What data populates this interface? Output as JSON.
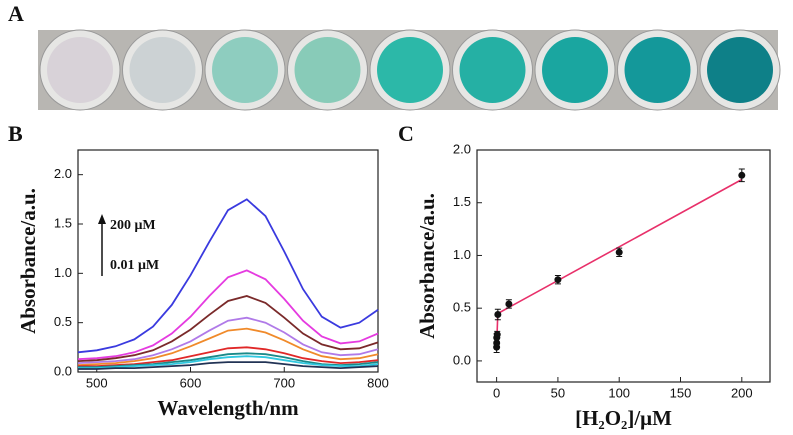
{
  "photo": {
    "label": "A"
  },
  "chart_data": [
    {
      "type": "line",
      "panel": "B",
      "ylabel": "Absorbance/a.u.",
      "xlabel": "Wavelength/nm",
      "annotations": [
        "200 μM",
        "0.01 μM"
      ],
      "xlim": [
        480,
        800
      ],
      "xticks": [
        500,
        600,
        700,
        800
      ],
      "ylim": [
        0,
        2.25
      ],
      "yticks": [
        {
          "value": 0,
          "label": "0.0"
        },
        {
          "value": 0.5,
          "label": "0.5"
        },
        {
          "value": 1,
          "label": "1.0"
        },
        {
          "value": 1.5,
          "label": "1.5"
        },
        {
          "value": 2,
          "label": "2.0"
        }
      ],
      "x": [
        480,
        500,
        520,
        540,
        560,
        580,
        600,
        620,
        640,
        660,
        680,
        700,
        720,
        740,
        760,
        780,
        800
      ],
      "series": [
        {
          "color": "#3a3adf",
          "values": [
            0.2,
            0.22,
            0.26,
            0.33,
            0.46,
            0.68,
            0.98,
            1.32,
            1.64,
            1.75,
            1.58,
            1.22,
            0.84,
            0.56,
            0.45,
            0.5,
            0.63
          ]
        },
        {
          "color": "#e53be0",
          "values": [
            0.13,
            0.14,
            0.16,
            0.2,
            0.27,
            0.39,
            0.56,
            0.77,
            0.96,
            1.03,
            0.94,
            0.74,
            0.52,
            0.36,
            0.29,
            0.31,
            0.39
          ]
        },
        {
          "color": "#7a2a2a",
          "values": [
            0.11,
            0.12,
            0.14,
            0.17,
            0.22,
            0.31,
            0.43,
            0.58,
            0.72,
            0.77,
            0.7,
            0.55,
            0.39,
            0.28,
            0.23,
            0.24,
            0.3
          ]
        },
        {
          "color": "#b07ae8",
          "values": [
            0.09,
            0.1,
            0.11,
            0.13,
            0.17,
            0.23,
            0.31,
            0.42,
            0.52,
            0.55,
            0.5,
            0.4,
            0.28,
            0.2,
            0.17,
            0.18,
            0.23
          ]
        },
        {
          "color": "#f08a2a",
          "values": [
            0.07,
            0.08,
            0.09,
            0.11,
            0.14,
            0.19,
            0.26,
            0.34,
            0.42,
            0.44,
            0.4,
            0.32,
            0.23,
            0.16,
            0.13,
            0.14,
            0.18
          ]
        },
        {
          "color": "#e02828",
          "values": [
            0.06,
            0.06,
            0.07,
            0.08,
            0.1,
            0.12,
            0.16,
            0.2,
            0.24,
            0.25,
            0.23,
            0.19,
            0.14,
            0.11,
            0.09,
            0.1,
            0.12
          ]
        },
        {
          "color": "#1a8a8a",
          "values": [
            0.05,
            0.05,
            0.06,
            0.07,
            0.08,
            0.1,
            0.12,
            0.15,
            0.18,
            0.19,
            0.18,
            0.15,
            0.11,
            0.08,
            0.07,
            0.08,
            0.1
          ]
        },
        {
          "color": "#30c8e0",
          "values": [
            0.04,
            0.04,
            0.05,
            0.06,
            0.07,
            0.08,
            0.1,
            0.13,
            0.15,
            0.16,
            0.15,
            0.12,
            0.09,
            0.07,
            0.06,
            0.06,
            0.08
          ]
        },
        {
          "color": "#223355",
          "values": [
            0.03,
            0.03,
            0.04,
            0.04,
            0.05,
            0.06,
            0.07,
            0.09,
            0.1,
            0.1,
            0.1,
            0.08,
            0.06,
            0.05,
            0.04,
            0.05,
            0.06
          ]
        }
      ]
    },
    {
      "type": "scatter",
      "panel": "C",
      "ylabel": "Absorbance/a.u.",
      "xlabel": "[H₂O₂]/μM",
      "xlim": [
        -16,
        223
      ],
      "xticks": [
        0,
        50,
        100,
        150,
        200
      ],
      "ylim": [
        -0.2,
        2.0
      ],
      "yticks": [
        {
          "value": 0,
          "label": "0.0"
        },
        {
          "value": 0.5,
          "label": "0.5"
        },
        {
          "value": 1,
          "label": "1.0"
        },
        {
          "value": 1.5,
          "label": "1.5"
        },
        {
          "value": 2,
          "label": "2.0"
        }
      ],
      "series": [
        {
          "color": "#111111",
          "x": [
            0.01,
            0.05,
            0.1,
            0.5,
            1,
            10,
            50,
            100,
            200
          ],
          "values": [
            0.13,
            0.17,
            0.22,
            0.25,
            0.44,
            0.54,
            0.77,
            1.03,
            1.76
          ],
          "errors": [
            0.05,
            0.04,
            0.04,
            0.03,
            0.05,
            0.04,
            0.04,
            0.04,
            0.06
          ]
        }
      ],
      "fit": {
        "color": "#e8306a",
        "x": [
          0.01,
          1,
          200
        ],
        "values": [
          0.13,
          0.45,
          1.72
        ]
      }
    }
  ]
}
